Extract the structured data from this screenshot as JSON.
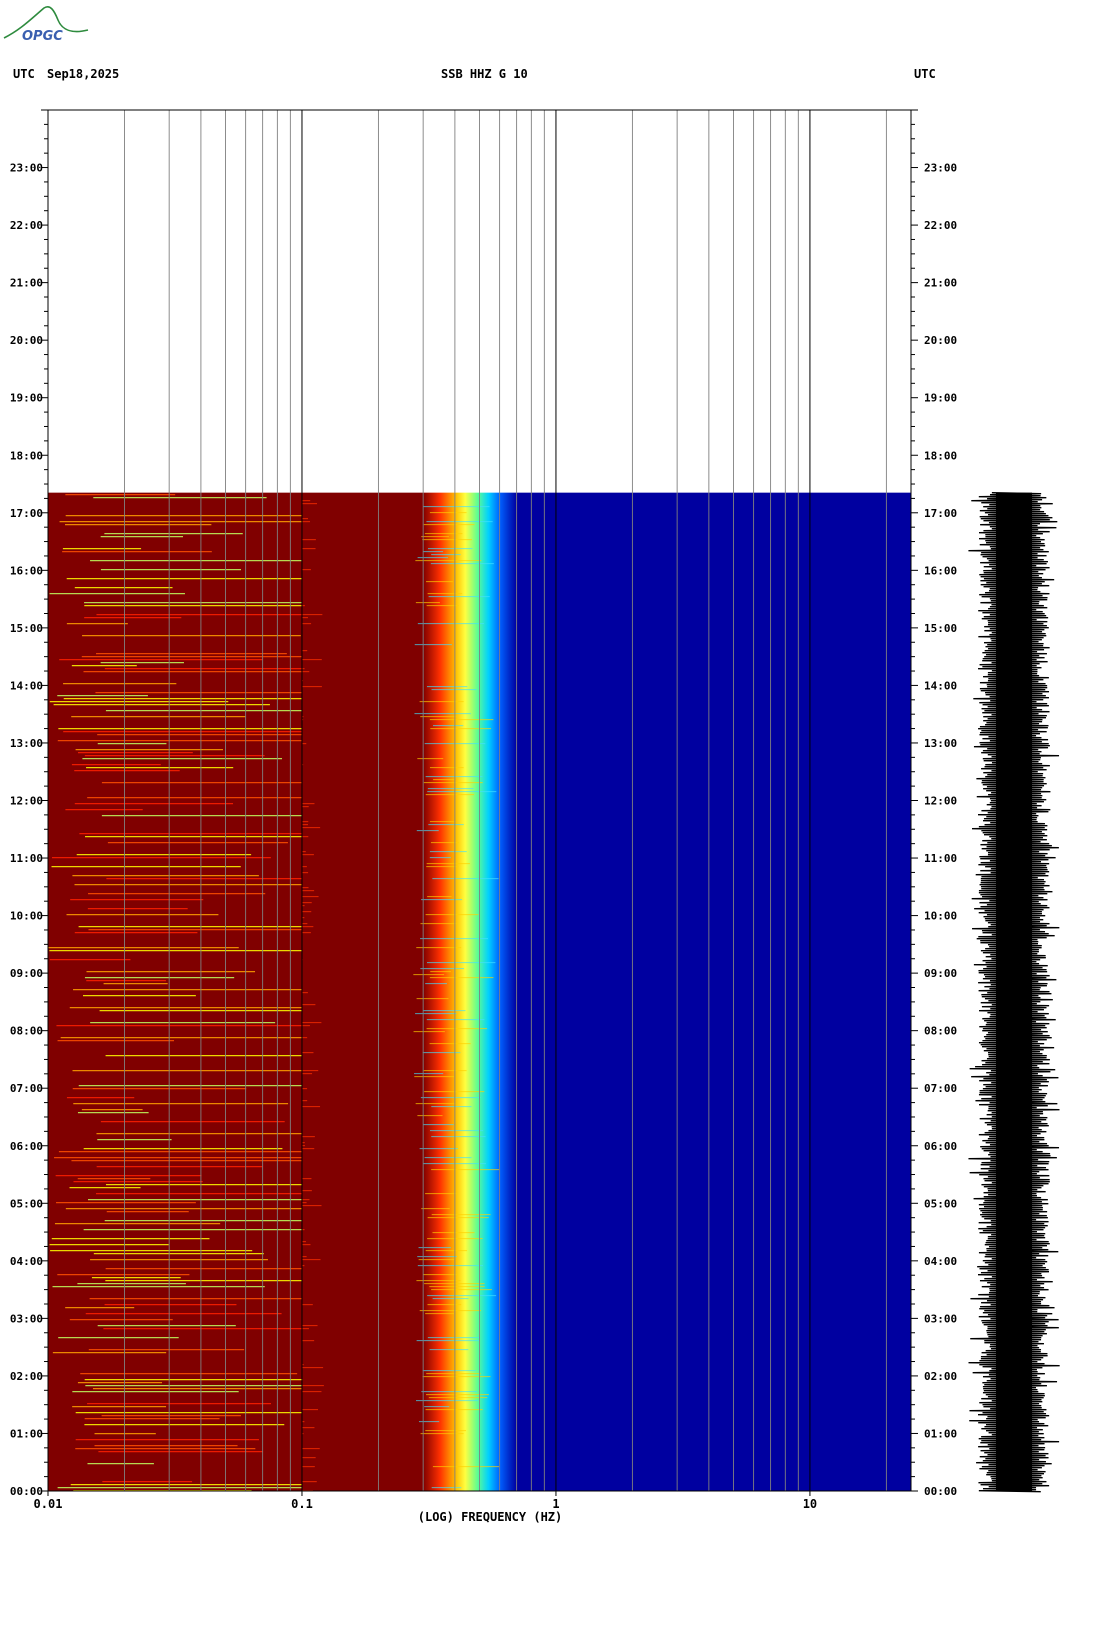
{
  "header": {
    "left_tz": "UTC",
    "date": "Sep18,2025",
    "station": "SSB HHZ G 10",
    "right_tz": "UTC"
  },
  "logo": {
    "text": "OPGC"
  },
  "chart_data": {
    "type": "heatmap",
    "title": "SSB HHZ G 10",
    "xlabel": "(LOG) FREQUENCY (HZ)",
    "x_scale": "log",
    "xlim": [
      0.01,
      25
    ],
    "x_ticks": [
      "0.01",
      "0.1",
      "1",
      "10"
    ],
    "y_ticks": [
      "00:00",
      "01:00",
      "02:00",
      "03:00",
      "04:00",
      "05:00",
      "06:00",
      "07:00",
      "08:00",
      "09:00",
      "10:00",
      "11:00",
      "12:00",
      "13:00",
      "14:00",
      "15:00",
      "16:00",
      "17:00",
      "18:00",
      "19:00",
      "20:00",
      "21:00",
      "22:00",
      "23:00"
    ],
    "ylim_hours": [
      0,
      24
    ],
    "data_end_hour": 17.35,
    "bands": [
      {
        "f_from": 0.01,
        "f_to": 0.3,
        "level": "high"
      },
      {
        "f_from": 0.3,
        "f_to": 0.7,
        "level": "transition"
      },
      {
        "f_from": 0.7,
        "f_to": 25,
        "level": "low"
      }
    ],
    "colors": {
      "high": "#800000",
      "mid": "#ffff00",
      "low": "#0000a0",
      "grid": "#808080"
    },
    "trace_color": "#000000"
  }
}
